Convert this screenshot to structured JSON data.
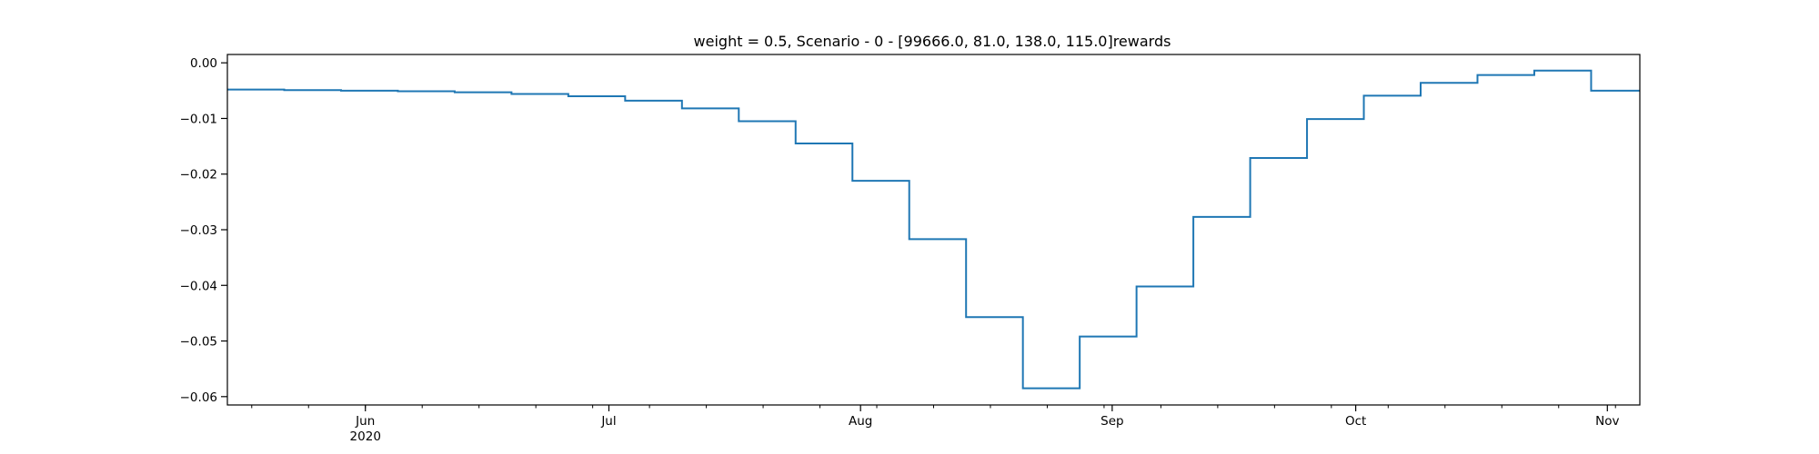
{
  "chart_data": {
    "type": "line",
    "title": "weight = 0.5, Scenario - 0 - [99666.0, 81.0, 138.0, 115.0]rewards",
    "xlabel": "",
    "ylabel": "",
    "step": "post",
    "color": "#1f77b4",
    "grid": false,
    "x_range": [
      "2020-05-15",
      "2020-11-05"
    ],
    "ylim": [
      -0.0615,
      0.0015
    ],
    "x_ticks": [
      {
        "date": "2020-06-01",
        "label": "Jun",
        "sublabel": "2020"
      },
      {
        "date": "2020-07-01",
        "label": "Jul",
        "sublabel": ""
      },
      {
        "date": "2020-08-01",
        "label": "Aug",
        "sublabel": ""
      },
      {
        "date": "2020-09-01",
        "label": "Sep",
        "sublabel": ""
      },
      {
        "date": "2020-10-01",
        "label": "Oct",
        "sublabel": ""
      },
      {
        "date": "2020-11-01",
        "label": "Nov",
        "sublabel": ""
      }
    ],
    "y_ticks": [
      {
        "value": 0.0,
        "label": "0.00"
      },
      {
        "value": -0.01,
        "label": "−0.01"
      },
      {
        "value": -0.02,
        "label": "−0.02"
      },
      {
        "value": -0.03,
        "label": "−0.03"
      },
      {
        "value": -0.04,
        "label": "−0.04"
      },
      {
        "value": -0.05,
        "label": "−0.05"
      },
      {
        "value": -0.06,
        "label": "−0.06"
      }
    ],
    "series": [
      {
        "name": "",
        "x": [
          "2020-05-15",
          "2020-05-22",
          "2020-05-29",
          "2020-06-05",
          "2020-06-12",
          "2020-06-19",
          "2020-06-26",
          "2020-07-03",
          "2020-07-10",
          "2020-07-17",
          "2020-07-24",
          "2020-07-31",
          "2020-08-07",
          "2020-08-14",
          "2020-08-21",
          "2020-08-28",
          "2020-09-04",
          "2020-09-11",
          "2020-09-18",
          "2020-09-25",
          "2020-10-02",
          "2020-10-09",
          "2020-10-16",
          "2020-10-23",
          "2020-10-30",
          "2020-11-05"
        ],
        "y": [
          -0.0048,
          -0.0049,
          -0.005,
          -0.0051,
          -0.0053,
          -0.0056,
          -0.006,
          -0.0068,
          -0.0082,
          -0.0105,
          -0.0145,
          -0.0212,
          -0.0317,
          -0.0457,
          -0.0585,
          -0.0492,
          -0.0402,
          -0.0277,
          -0.0171,
          -0.0101,
          -0.0059,
          -0.0036,
          -0.0022,
          -0.0014,
          -0.005,
          -0.005
        ]
      }
    ]
  }
}
